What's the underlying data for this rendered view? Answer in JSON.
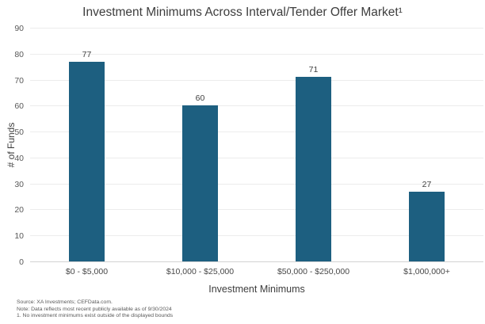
{
  "chart_data": {
    "type": "bar",
    "title": "Investment Minimums Across Interval/Tender Offer Market¹",
    "categories": [
      "$0 - $5,000",
      "$10,000 - $25,000",
      "$50,000 - $250,000",
      "$1,000,000+"
    ],
    "values": [
      77,
      60,
      71,
      27
    ],
    "xlabel": "Investment Minimums",
    "ylabel": "# of Funds",
    "ylim": [
      0,
      90
    ],
    "ytick_step": 10,
    "grid": true,
    "legend": false,
    "bar_color": "#1d5f80",
    "gridline_color": "#ececec",
    "axis_line_color": "#d2d2d2"
  },
  "footnotes": {
    "source": "Source: XA Investments; CEFData.com.",
    "note": "Note: Data reflects most recent publicly available as of 9/30/2024",
    "footnote1": "1. No investment minimums exist outside of the displayed bounds"
  }
}
